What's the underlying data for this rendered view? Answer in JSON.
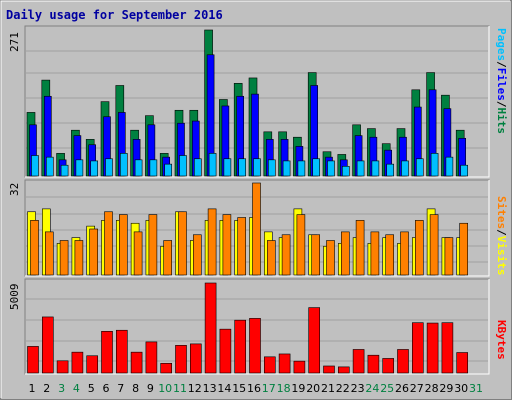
{
  "title": "Daily usage for September 2016",
  "colors": {
    "hits": "#008040",
    "files": "#0000ff",
    "pages": "#00c0ff",
    "visits": "#ff8000",
    "sites": "#ffff00",
    "kbytes": "#ff0000",
    "title": "#0000a0",
    "weekend": "#008040",
    "weekday": "#000000"
  },
  "chart_data": [
    {
      "type": "bar",
      "panel": "hits_files_pages",
      "y_max_label": "271",
      "ylim": [
        0,
        271
      ],
      "legend": [
        "Pages",
        "/",
        "Files",
        "/",
        "Hits"
      ],
      "categories": [
        "1",
        "2",
        "3",
        "4",
        "5",
        "6",
        "7",
        "8",
        "9",
        "10",
        "11",
        "12",
        "13",
        "14",
        "15",
        "16",
        "17",
        "18",
        "19",
        "20",
        "21",
        "22",
        "23",
        "24",
        "25",
        "26",
        "27",
        "28",
        "29",
        "30",
        "31"
      ],
      "series": [
        {
          "name": "Hits",
          "values": [
            118,
            178,
            42,
            85,
            68,
            138,
            168,
            85,
            112,
            42,
            122,
            122,
            271,
            142,
            172,
            182,
            82,
            82,
            72,
            192,
            45,
            40,
            95,
            88,
            60,
            88,
            160,
            192,
            150,
            85,
            0
          ]
        },
        {
          "name": "Files",
          "values": [
            95,
            148,
            30,
            75,
            58,
            110,
            118,
            68,
            95,
            35,
            98,
            102,
            225,
            130,
            148,
            152,
            68,
            68,
            55,
            168,
            35,
            30,
            75,
            72,
            48,
            72,
            128,
            160,
            125,
            70,
            0
          ]
        },
        {
          "name": "Pages",
          "values": [
            38,
            35,
            20,
            30,
            28,
            32,
            42,
            30,
            30,
            22,
            38,
            32,
            42,
            32,
            32,
            32,
            30,
            28,
            28,
            32,
            28,
            18,
            28,
            28,
            22,
            28,
            32,
            42,
            35,
            20,
            0
          ]
        }
      ]
    },
    {
      "type": "bar",
      "panel": "visits_sites",
      "y_max_label": "32",
      "ylim": [
        0,
        32
      ],
      "legend": [
        "Sites",
        "/",
        "Visits"
      ],
      "categories": [
        "1",
        "2",
        "3",
        "4",
        "5",
        "6",
        "7",
        "8",
        "9",
        "10",
        "11",
        "12",
        "13",
        "14",
        "15",
        "16",
        "17",
        "18",
        "19",
        "20",
        "21",
        "22",
        "23",
        "24",
        "25",
        "26",
        "27",
        "28",
        "29",
        "30",
        "31"
      ],
      "series": [
        {
          "name": "Visits",
          "values": [
            19,
            15,
            12,
            12,
            16,
            22,
            21,
            15,
            21,
            12,
            22,
            14,
            23,
            21,
            20,
            32,
            12,
            14,
            21,
            14,
            12,
            15,
            19,
            15,
            14,
            15,
            19,
            21,
            13,
            18,
            0
          ]
        },
        {
          "name": "Sites",
          "values": [
            22,
            23,
            11,
            13,
            17,
            19,
            19,
            18,
            19,
            10,
            22,
            12,
            19,
            19,
            19,
            20,
            15,
            13,
            23,
            14,
            10,
            11,
            13,
            11,
            13,
            11,
            13,
            23,
            13,
            13,
            0
          ]
        }
      ]
    },
    {
      "type": "bar",
      "panel": "kbytes",
      "y_max_label": "5009",
      "ylim": [
        0,
        5009
      ],
      "legend": [
        "KBytes"
      ],
      "categories": [
        "1",
        "2",
        "3",
        "4",
        "5",
        "6",
        "7",
        "8",
        "9",
        "10",
        "11",
        "12",
        "13",
        "14",
        "15",
        "16",
        "17",
        "18",
        "19",
        "20",
        "21",
        "22",
        "23",
        "24",
        "25",
        "26",
        "27",
        "28",
        "29",
        "30",
        "31"
      ],
      "series": [
        {
          "name": "KBytes",
          "values": [
            1480,
            3120,
            680,
            1160,
            960,
            2320,
            2380,
            1160,
            1730,
            540,
            1540,
            1620,
            5009,
            2440,
            2940,
            3040,
            900,
            1060,
            660,
            3640,
            390,
            340,
            1310,
            990,
            810,
            1310,
            2800,
            2780,
            2800,
            1140,
            0
          ]
        }
      ]
    }
  ],
  "days": [
    {
      "label": "1",
      "weekend": false
    },
    {
      "label": "2",
      "weekend": false
    },
    {
      "label": "3",
      "weekend": true
    },
    {
      "label": "4",
      "weekend": true
    },
    {
      "label": "5",
      "weekend": false
    },
    {
      "label": "6",
      "weekend": false
    },
    {
      "label": "7",
      "weekend": false
    },
    {
      "label": "8",
      "weekend": false
    },
    {
      "label": "9",
      "weekend": false
    },
    {
      "label": "10",
      "weekend": true
    },
    {
      "label": "11",
      "weekend": true
    },
    {
      "label": "12",
      "weekend": false
    },
    {
      "label": "13",
      "weekend": false
    },
    {
      "label": "14",
      "weekend": false
    },
    {
      "label": "15",
      "weekend": false
    },
    {
      "label": "16",
      "weekend": false
    },
    {
      "label": "17",
      "weekend": true
    },
    {
      "label": "18",
      "weekend": true
    },
    {
      "label": "19",
      "weekend": false
    },
    {
      "label": "20",
      "weekend": false
    },
    {
      "label": "21",
      "weekend": false
    },
    {
      "label": "22",
      "weekend": false
    },
    {
      "label": "23",
      "weekend": false
    },
    {
      "label": "24",
      "weekend": true
    },
    {
      "label": "25",
      "weekend": true
    },
    {
      "label": "26",
      "weekend": false
    },
    {
      "label": "27",
      "weekend": false
    },
    {
      "label": "28",
      "weekend": false
    },
    {
      "label": "29",
      "weekend": false
    },
    {
      "label": "30",
      "weekend": false
    },
    {
      "label": "31",
      "weekend": true
    }
  ]
}
